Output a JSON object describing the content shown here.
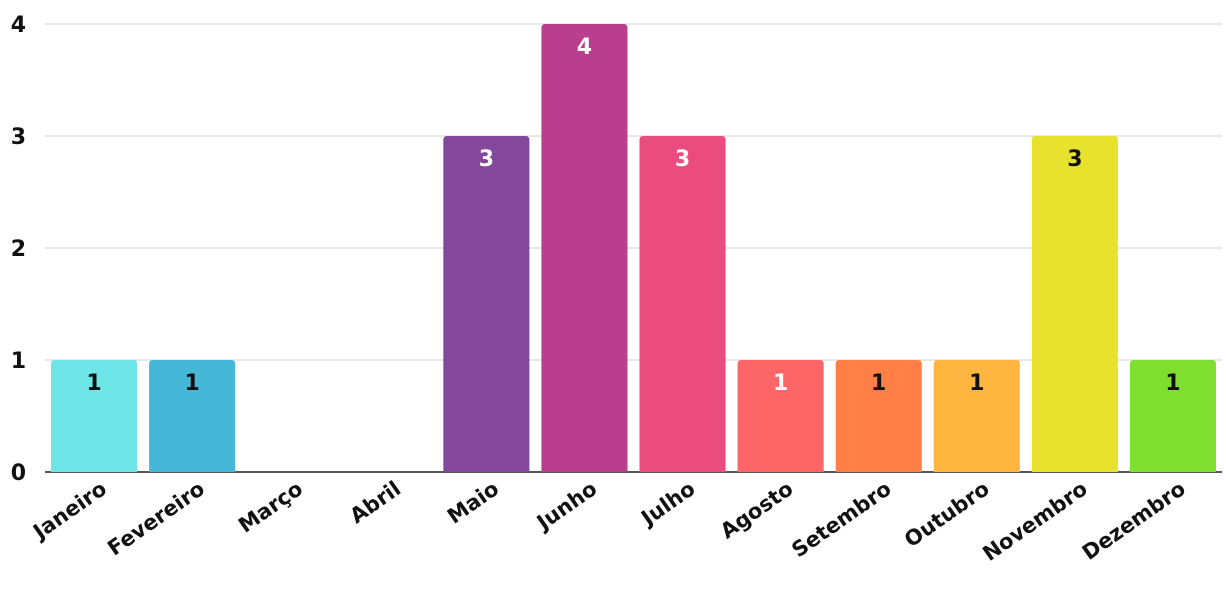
{
  "chart_data": {
    "type": "bar",
    "title": "",
    "xlabel": "",
    "ylabel": "",
    "categories": [
      "Janeiro",
      "Fevereiro",
      "Março",
      "Abril",
      "Maio",
      "Junho",
      "Julho",
      "Agosto",
      "Setembro",
      "Outubro",
      "Novembro",
      "Dezembro"
    ],
    "values": [
      1,
      1,
      0,
      0,
      3,
      4,
      3,
      1,
      1,
      1,
      3,
      1
    ],
    "colors": [
      "#6ee6e8",
      "#44b8d6",
      "#8a6fc8",
      "#8a6fc8",
      "#84489b",
      "#b93e8e",
      "#ea4c7f",
      "#fd6667",
      "#ff7f46",
      "#ffb640",
      "#e6e22d",
      "#7fdf2e"
    ],
    "label_colors": [
      "#111111",
      "#111111",
      "#111111",
      "#111111",
      "#ffffff",
      "#ffffff",
      "#ffffff",
      "#ffffff",
      "#111111",
      "#111111",
      "#111111",
      "#111111"
    ],
    "ylim": [
      0,
      4
    ],
    "yticks": [
      0,
      1,
      2,
      3,
      4
    ],
    "grid": true,
    "legend": "none"
  }
}
